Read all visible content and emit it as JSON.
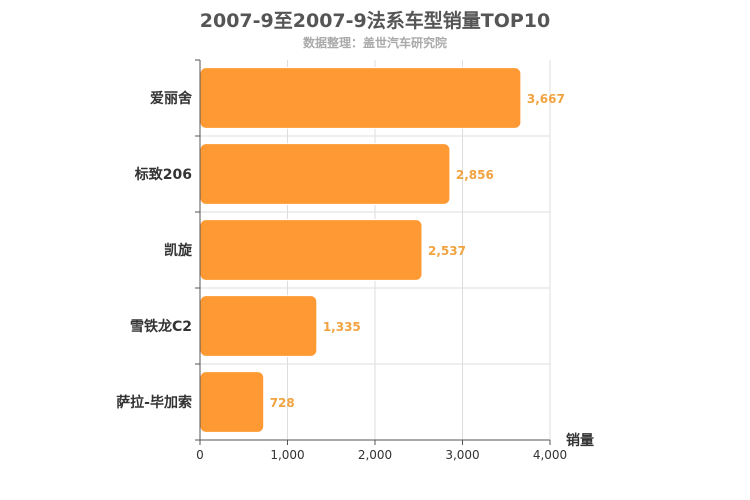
{
  "chart_data": {
    "type": "bar",
    "orientation": "horizontal",
    "title": "2007-9至2007-9法系车型销量TOP10",
    "subtitle": "数据整理：盖世汽车研究院",
    "categories": [
      "爱丽舍",
      "标致206",
      "凯旋",
      "雪铁龙C2",
      "萨拉-毕加索"
    ],
    "values": [
      3667,
      2856,
      2537,
      1335,
      728
    ],
    "value_labels": [
      "3,667",
      "2,856",
      "2,537",
      "1,335",
      "728"
    ],
    "xlabel": "销量",
    "ylabel": "",
    "xlim": [
      0,
      4000
    ],
    "xticks": [
      0,
      1000,
      2000,
      3000,
      4000
    ],
    "xtick_labels": [
      "0",
      "1,000",
      "2,000",
      "3,000",
      "4,000"
    ],
    "grid": true,
    "bar_color": "#ff9933",
    "value_label_color": "#f0a340"
  }
}
